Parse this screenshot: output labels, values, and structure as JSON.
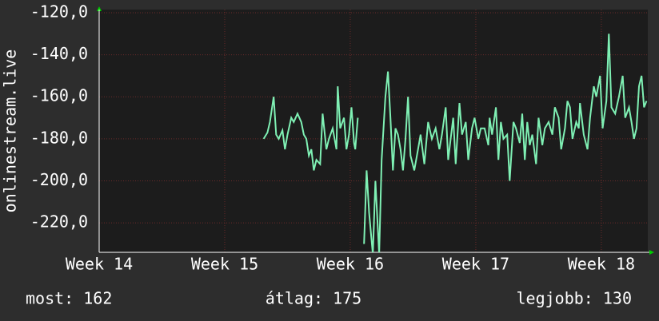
{
  "chart_data": {
    "type": "line",
    "ylabel": "onlinestream.live",
    "xlim": [
      14,
      18.37
    ],
    "xticks": [
      {
        "value": 14,
        "label": "Week 14"
      },
      {
        "value": 15,
        "label": "Week 15"
      },
      {
        "value": 16,
        "label": "Week 16"
      },
      {
        "value": 17,
        "label": "Week 17"
      },
      {
        "value": 18,
        "label": "Week 18"
      }
    ],
    "ylim": [
      -234,
      -118.5
    ],
    "yticks": [
      {
        "value": -120,
        "label": "-120,0"
      },
      {
        "value": -140,
        "label": "-140,0"
      },
      {
        "value": -160,
        "label": "-160,0"
      },
      {
        "value": -180,
        "label": "-180,0"
      },
      {
        "value": -200,
        "label": "-200,0"
      },
      {
        "value": -220,
        "label": "-220,0"
      }
    ],
    "grid": true,
    "x": [
      15.31,
      15.34,
      15.36,
      15.39,
      15.41,
      15.43,
      15.46,
      15.48,
      15.5,
      15.53,
      15.55,
      15.58,
      15.61,
      15.63,
      15.65,
      15.67,
      15.69,
      15.71,
      15.73,
      15.76,
      15.78,
      15.81,
      15.83,
      15.86,
      15.89,
      15.9,
      15.92,
      15.95,
      15.97,
      15.99,
      16.01,
      16.03,
      16.04,
      16.06,
      16.07,
      16.11,
      16.13,
      16.15,
      16.18,
      16.2,
      16.23,
      16.25,
      16.28,
      16.3,
      16.32,
      16.34,
      16.36,
      16.38,
      16.4,
      16.42,
      16.44,
      16.46,
      16.48,
      16.51,
      16.54,
      16.56,
      16.59,
      16.62,
      16.65,
      16.68,
      16.71,
      16.73,
      16.76,
      16.78,
      16.8,
      16.82,
      16.84,
      16.87,
      16.89,
      16.92,
      16.94,
      16.97,
      16.99,
      17.02,
      17.04,
      17.07,
      17.1,
      17.11,
      17.13,
      17.16,
      17.18,
      17.2,
      17.22,
      17.25,
      17.27,
      17.3,
      17.32,
      17.35,
      17.37,
      17.39,
      17.41,
      17.43,
      17.45,
      17.48,
      17.5,
      17.53,
      17.55,
      17.58,
      17.61,
      17.63,
      17.66,
      17.68,
      17.71,
      17.73,
      17.75,
      17.77,
      17.8,
      17.82,
      17.83,
      17.86,
      17.89,
      17.91,
      17.94,
      17.96,
      17.99,
      18.01,
      18.04,
      18.06,
      18.08,
      18.11,
      18.14,
      18.17,
      18.19,
      18.22,
      18.24,
      18.26,
      18.28,
      18.3,
      18.32,
      18.34,
      18.36
    ],
    "series": [
      {
        "color": "#7ff0b4",
        "values": [
          -180,
          -177,
          -172,
          -160,
          -178,
          -180,
          -176,
          -185,
          -178,
          -170,
          -172,
          -168,
          -172,
          -178,
          -180,
          -188,
          -185,
          -195,
          -190,
          -192,
          -168,
          -185,
          -180,
          -175,
          -185,
          -155,
          -175,
          -170,
          -185,
          -178,
          -165,
          -182,
          -185,
          -170,
          null,
          -230,
          -195,
          -215,
          -235,
          -200,
          -235,
          -190,
          -160,
          -148,
          -170,
          -195,
          -175,
          -178,
          -185,
          -195,
          -180,
          -160,
          -188,
          -195,
          -185,
          -178,
          -192,
          -172,
          -180,
          -175,
          -185,
          -178,
          -165,
          -190,
          -180,
          -170,
          -192,
          -163,
          -178,
          -172,
          -190,
          -175,
          -170,
          -180,
          -175,
          -175,
          -183,
          -170,
          -178,
          -165,
          -190,
          -172,
          -180,
          -178,
          -200,
          -172,
          -175,
          -182,
          -168,
          -190,
          -172,
          -183,
          -178,
          -192,
          -170,
          -183,
          -175,
          -172,
          -178,
          -165,
          -170,
          -185,
          -175,
          -162,
          -165,
          -180,
          -172,
          -175,
          -163,
          -178,
          -185,
          -170,
          -155,
          -160,
          -150,
          -175,
          -162,
          -130,
          -165,
          -168,
          -160,
          -150,
          -170,
          -165,
          -172,
          -180,
          -175,
          -155,
          -150,
          -165,
          -162
        ]
      }
    ],
    "stats": [
      "most: 162",
      "átlag: 175",
      "legjobb: 130"
    ]
  }
}
